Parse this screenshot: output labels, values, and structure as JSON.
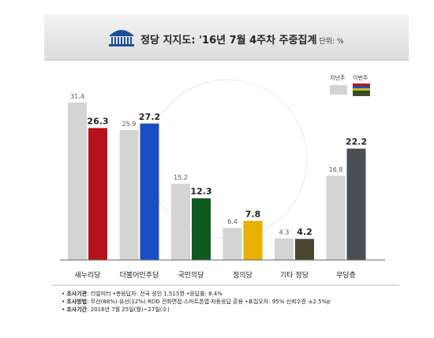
{
  "header": {
    "title": "정당 지지도: '16년 7월 4주차 주중집계",
    "unit": "단위: %"
  },
  "legend": {
    "previous_label": "지난주",
    "current_label": "이번주",
    "previous_color": "#d4d4d4",
    "current_colors": [
      "#b5121b",
      "#1a4fc4",
      "#0f5a1f",
      "#e8b000",
      "#4a4530",
      "#4a4f56"
    ]
  },
  "chart_data": {
    "type": "bar",
    "categories": [
      "새누리당",
      "더불어민주당",
      "국민의당",
      "정의당",
      "기타 정당",
      "무당층"
    ],
    "series": [
      {
        "name": "지난주",
        "values": [
          31.4,
          25.9,
          15.2,
          6.4,
          4.3,
          16.8
        ]
      },
      {
        "name": "이번주",
        "values": [
          26.3,
          27.2,
          12.3,
          7.8,
          4.2,
          22.2
        ]
      }
    ],
    "current_colors": [
      "#b5121b",
      "#1a4fc4",
      "#0f5a1f",
      "#e8b000",
      "#4a4530",
      "#4a4f56"
    ],
    "previous_color": "#d4d4d4",
    "ylim": [
      0,
      35
    ],
    "grid": false,
    "legend_position": "top-right"
  },
  "footer": {
    "note1_label": "조사기관",
    "note1_text": ": 리얼미터 •총응답자: 전국 성인 1,515명 •응답률: 8.4%",
    "note2_label": "조사방법",
    "note2_text": ": 무선(88%)·유선(12%) RDD 전화면접·스마트폰앱·자동응답 혼용 •표집오차: 95% 신뢰수준 ±2.5%p",
    "note3_label": "조사기간",
    "note3_text": ": 2016년 7월 25일(월)~27일(수)"
  }
}
